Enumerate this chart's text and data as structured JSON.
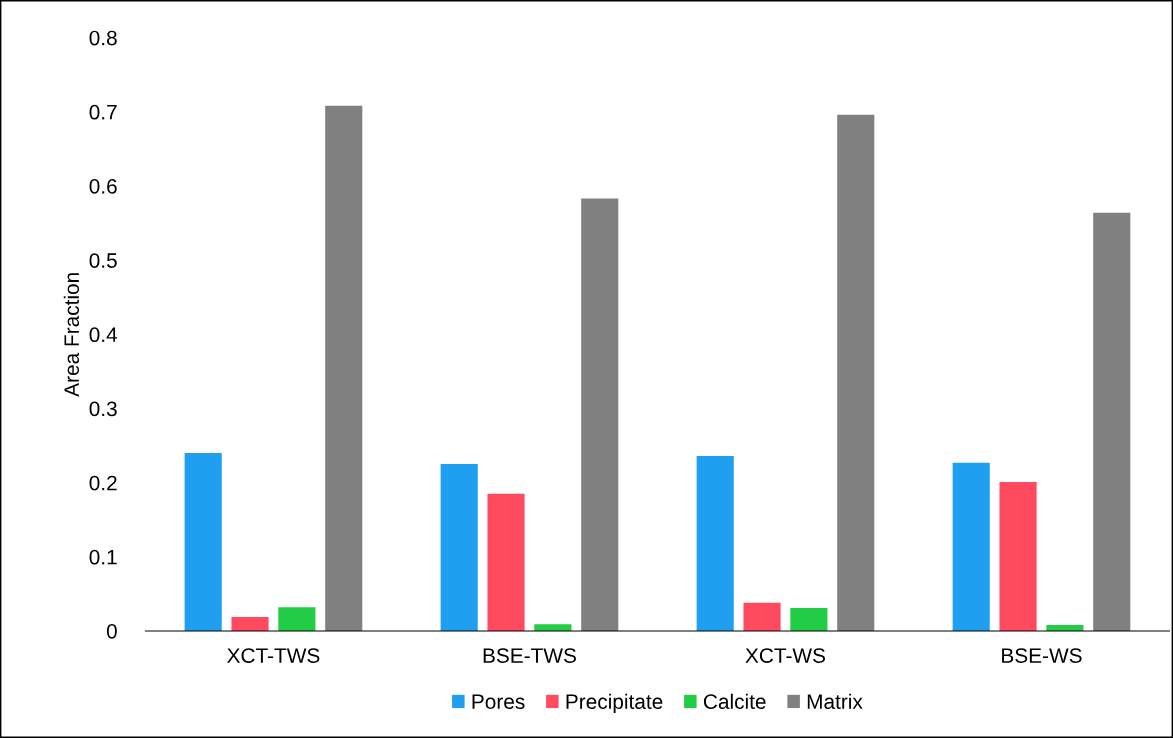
{
  "chart_data": {
    "type": "bar",
    "ylabel": "Area Fraction",
    "categories": [
      "XCT-TWS",
      "BSE-TWS",
      "XCT-WS",
      "BSE-WS"
    ],
    "series": [
      {
        "name": "Pores",
        "color": "#1f9ff0",
        "values": [
          0.24,
          0.225,
          0.236,
          0.227
        ]
      },
      {
        "name": "Precipitate",
        "color": "#ff4a5f",
        "values": [
          0.019,
          0.185,
          0.038,
          0.201
        ]
      },
      {
        "name": "Calcite",
        "color": "#22cc44",
        "values": [
          0.032,
          0.009,
          0.031,
          0.008
        ]
      },
      {
        "name": "Matrix",
        "color": "#808080",
        "values": [
          0.708,
          0.583,
          0.696,
          0.564
        ]
      }
    ],
    "ylim": [
      0,
      0.8
    ],
    "yticks": [
      {
        "value": 0,
        "label": "0"
      },
      0.1,
      0.2,
      0.3,
      0.4,
      0.5,
      0.6,
      0.7,
      0.8
    ],
    "grid": false,
    "legend": "bottom"
  }
}
